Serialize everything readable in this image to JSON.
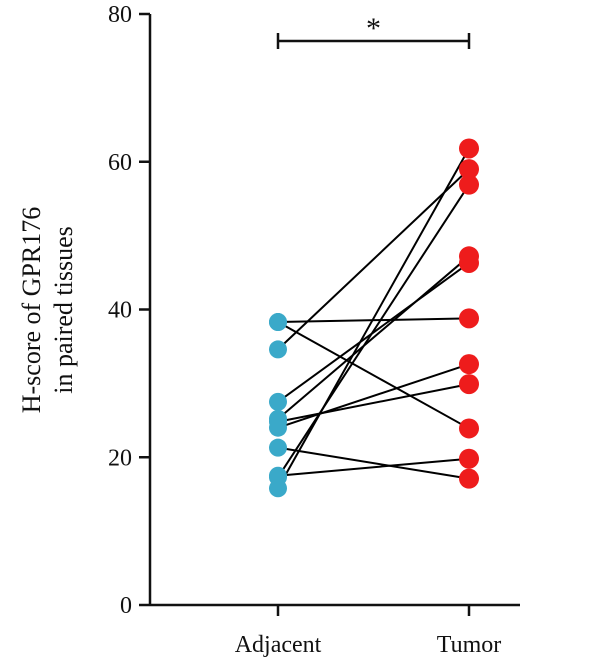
{
  "chart_data": {
    "type": "scatter",
    "subtype": "paired-dot-plot",
    "categories": [
      "Adjacent",
      "Tumor"
    ],
    "ylabel_lines": [
      "H-score of GPR176",
      "in paired tissues"
    ],
    "ylim": [
      0,
      80
    ],
    "yticks": [
      "0",
      "20",
      "40",
      "60",
      "80"
    ],
    "xlabel": "",
    "grid": false,
    "significance": {
      "label": "*",
      "from": "Adjacent",
      "to": "Tumor"
    },
    "colors": {
      "Adjacent": "#3aa9c9",
      "Tumor": "#ee1c1c",
      "line": "#000000",
      "axis": "#111111"
    },
    "pairs": [
      {
        "adjacent": 38.3,
        "tumor": 38.8
      },
      {
        "adjacent": 38.3,
        "tumor": 23.9
      },
      {
        "adjacent": 34.6,
        "tumor": 59.0
      },
      {
        "adjacent": 27.5,
        "tumor": 46.3
      },
      {
        "adjacent": 25.2,
        "tumor": 47.2
      },
      {
        "adjacent": 24.0,
        "tumor": 32.6
      },
      {
        "adjacent": 24.8,
        "tumor": 29.9
      },
      {
        "adjacent": 21.3,
        "tumor": 17.1
      },
      {
        "adjacent": 17.5,
        "tumor": 19.8
      },
      {
        "adjacent": 17.3,
        "tumor": 56.9
      },
      {
        "adjacent": 15.8,
        "tumor": 61.8
      }
    ]
  }
}
